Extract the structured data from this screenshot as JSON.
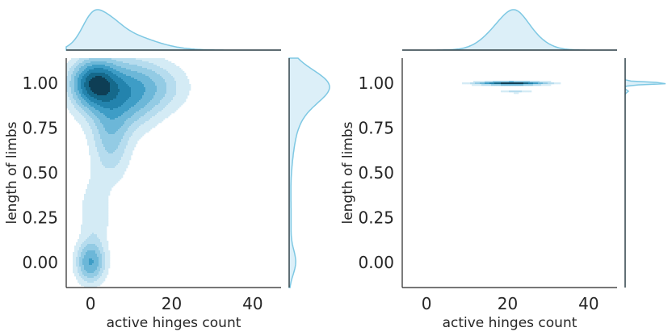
{
  "chart_data": [
    {
      "type": "kde-jointplot",
      "xlabel": "active hinges count",
      "ylabel": "length of limbs",
      "xlim": [
        -6,
        47
      ],
      "ylim": [
        -0.14,
        1.14
      ],
      "xticks": [
        0,
        20,
        40
      ],
      "xtick_labels": [
        "0",
        "20",
        "40"
      ],
      "yticks": [
        0.0,
        0.25,
        0.5,
        0.75,
        1.0
      ],
      "ytick_labels": [
        "0.00",
        "0.25",
        "0.50",
        "0.75",
        "1.00"
      ],
      "color": "#7ec8e3",
      "density_peaks": [
        {
          "x": 1,
          "y": 1.0,
          "sx": 3.5,
          "sy": 0.08,
          "w": 1.0
        },
        {
          "x": 7,
          "y": 0.93,
          "sx": 5.5,
          "sy": 0.12,
          "w": 0.55
        },
        {
          "x": 14,
          "y": 0.98,
          "sx": 6,
          "sy": 0.09,
          "w": 0.3
        },
        {
          "x": 5,
          "y": 0.7,
          "sx": 3,
          "sy": 0.15,
          "w": 0.3
        },
        {
          "x": 0,
          "y": 0.0,
          "sx": 2.2,
          "sy": 0.07,
          "w": 0.55
        },
        {
          "x": 1,
          "y": 0.25,
          "sx": 2.5,
          "sy": 0.15,
          "w": 0.15
        }
      ],
      "x_marginal_peak": 1,
      "y_marginal_peaks": [
        1.0,
        0.0
      ]
    },
    {
      "type": "kde-jointplot",
      "xlabel": "active hinges count",
      "ylabel": "length of limbs",
      "xlim": [
        -6,
        47
      ],
      "ylim": [
        -0.14,
        1.14
      ],
      "xticks": [
        0,
        20,
        40
      ],
      "xtick_labels": [
        "0",
        "20",
        "40"
      ],
      "yticks": [
        0.0,
        0.25,
        0.5,
        0.75,
        1.0
      ],
      "ytick_labels": [
        "0.00",
        "0.25",
        "0.50",
        "0.75",
        "1.00"
      ],
      "color": "#7ec8e3",
      "density_peaks": [
        {
          "x": 21,
          "y": 1.0,
          "sx": 5,
          "sy": 0.006,
          "w": 1.0
        },
        {
          "x": 22,
          "y": 0.955,
          "sx": 2.5,
          "sy": 0.006,
          "w": 0.15
        }
      ],
      "x_marginal_peak": 20,
      "y_marginal_peaks": [
        1.0
      ]
    }
  ]
}
